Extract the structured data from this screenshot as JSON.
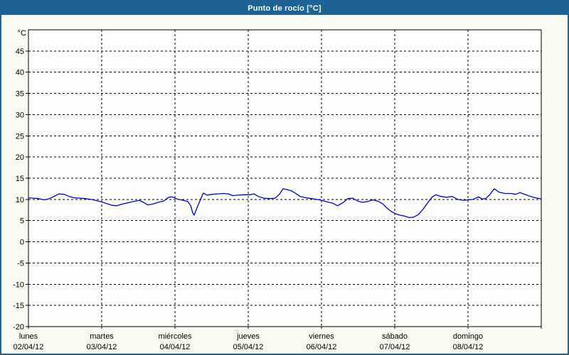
{
  "window": {
    "title": "Punto de rocío [°C]",
    "frame_color": "#1E6396",
    "title_text_color": "#FFFFFF",
    "page_bg": "#FAFAF2",
    "plot_bg": "#FEFEFC"
  },
  "chart_data": {
    "type": "line",
    "title": "Punto de rocío [°C]",
    "grid": "dashed",
    "legend": "none",
    "y_axis": {
      "unit_label": "°C",
      "min": -20,
      "max": 50,
      "tick_step": 5,
      "ticks": [
        45,
        40,
        35,
        30,
        25,
        20,
        15,
        10,
        5,
        0,
        -5,
        -10,
        -15,
        -20
      ],
      "grid_color": "#000000"
    },
    "x_axis": {
      "span_hours": 168,
      "hours_per_day": 24,
      "days": [
        {
          "name": "lunes",
          "date": "02/04/12"
        },
        {
          "name": "martes",
          "date": "03/04/12"
        },
        {
          "name": "miércoles",
          "date": "04/04/12"
        },
        {
          "name": "jueves",
          "date": "05/04/12"
        },
        {
          "name": "viernes",
          "date": "06/04/12"
        },
        {
          "name": "sábado",
          "date": "07/04/12"
        },
        {
          "name": "domingo",
          "date": "08/04/12"
        }
      ]
    },
    "series": [
      {
        "name": "Punto de rocío",
        "color": "#0000CC",
        "points_hours_degc": [
          [
            0,
            10.4
          ],
          [
            1.4,
            10.3
          ],
          [
            3.3,
            10.2
          ],
          [
            5.1,
            9.9
          ],
          [
            6.5,
            10.1
          ],
          [
            8.4,
            10.7
          ],
          [
            10,
            11.3
          ],
          [
            11.7,
            11.2
          ],
          [
            13.3,
            10.7
          ],
          [
            14.9,
            10.4
          ],
          [
            16.8,
            10.3
          ],
          [
            18.6,
            10.2
          ],
          [
            20.5,
            10
          ],
          [
            22.4,
            9.7
          ],
          [
            24,
            9.4
          ],
          [
            25.6,
            9
          ],
          [
            27.5,
            8.6
          ],
          [
            28.9,
            8.5
          ],
          [
            30.8,
            8.9
          ],
          [
            32.6,
            9.2
          ],
          [
            34.5,
            9.5
          ],
          [
            36.3,
            9.8
          ],
          [
            37.7,
            9.3
          ],
          [
            39.1,
            8.7
          ],
          [
            40.8,
            8.9
          ],
          [
            42.4,
            9.3
          ],
          [
            44.3,
            9.6
          ],
          [
            45.9,
            10.5
          ],
          [
            47.1,
            10.6
          ],
          [
            48.7,
            10.1
          ],
          [
            50.6,
            9.8
          ],
          [
            52.2,
            9.5
          ],
          [
            53.1,
            8.6
          ],
          [
            53.8,
            6.9
          ],
          [
            54.3,
            6.3
          ],
          [
            55.2,
            8
          ],
          [
            56.2,
            9.7
          ],
          [
            57.3,
            11.5
          ],
          [
            58.5,
            11
          ],
          [
            60.1,
            11.2
          ],
          [
            62,
            11.3
          ],
          [
            63.8,
            11.4
          ],
          [
            65.5,
            11.3
          ],
          [
            66.9,
            10.9
          ],
          [
            68.7,
            11
          ],
          [
            70.6,
            11.1
          ],
          [
            72.5,
            11.1
          ],
          [
            73.9,
            11.3
          ],
          [
            75.3,
            10.7
          ],
          [
            77.1,
            10.3
          ],
          [
            79,
            10.2
          ],
          [
            80.8,
            10.3
          ],
          [
            82.2,
            11.2
          ],
          [
            83.4,
            12.5
          ],
          [
            84.8,
            12.3
          ],
          [
            86.2,
            12
          ],
          [
            87.6,
            11.4
          ],
          [
            89,
            10.7
          ],
          [
            90.9,
            10.4
          ],
          [
            92.7,
            10.2
          ],
          [
            94.6,
            10
          ],
          [
            96,
            9.8
          ],
          [
            97.9,
            9.4
          ],
          [
            99.7,
            9.1
          ],
          [
            101.3,
            8.5
          ],
          [
            103,
            9.2
          ],
          [
            104.6,
            10.2
          ],
          [
            106.2,
            10.3
          ],
          [
            107.9,
            9.6
          ],
          [
            109.5,
            9.3
          ],
          [
            111.2,
            9.5
          ],
          [
            112.8,
            9.9
          ],
          [
            114.4,
            9.6
          ],
          [
            116,
            9
          ],
          [
            117.4,
            8
          ],
          [
            118.8,
            7.2
          ],
          [
            120,
            6.7
          ],
          [
            121.6,
            6.3
          ],
          [
            123,
            6.1
          ],
          [
            124.7,
            5.7
          ],
          [
            126.1,
            5.8
          ],
          [
            127.7,
            6.4
          ],
          [
            129.3,
            7.7
          ],
          [
            130.7,
            9.1
          ],
          [
            132.3,
            10.6
          ],
          [
            133.5,
            11.1
          ],
          [
            135.1,
            10.7
          ],
          [
            137,
            10.5
          ],
          [
            138.8,
            10.7
          ],
          [
            140.7,
            10
          ],
          [
            142.4,
            9.8
          ],
          [
            144,
            9.9
          ],
          [
            145.6,
            10
          ],
          [
            147.5,
            10.6
          ],
          [
            148.6,
            10.1
          ],
          [
            149.8,
            10.2
          ],
          [
            151,
            11
          ],
          [
            152.6,
            12.5
          ],
          [
            154.2,
            11.7
          ],
          [
            156.1,
            11.4
          ],
          [
            158,
            11.4
          ],
          [
            159.6,
            11.2
          ],
          [
            161,
            11.6
          ],
          [
            162.6,
            11.2
          ],
          [
            164.5,
            10.7
          ],
          [
            166.1,
            10.4
          ],
          [
            168,
            10.1
          ]
        ]
      }
    ]
  }
}
